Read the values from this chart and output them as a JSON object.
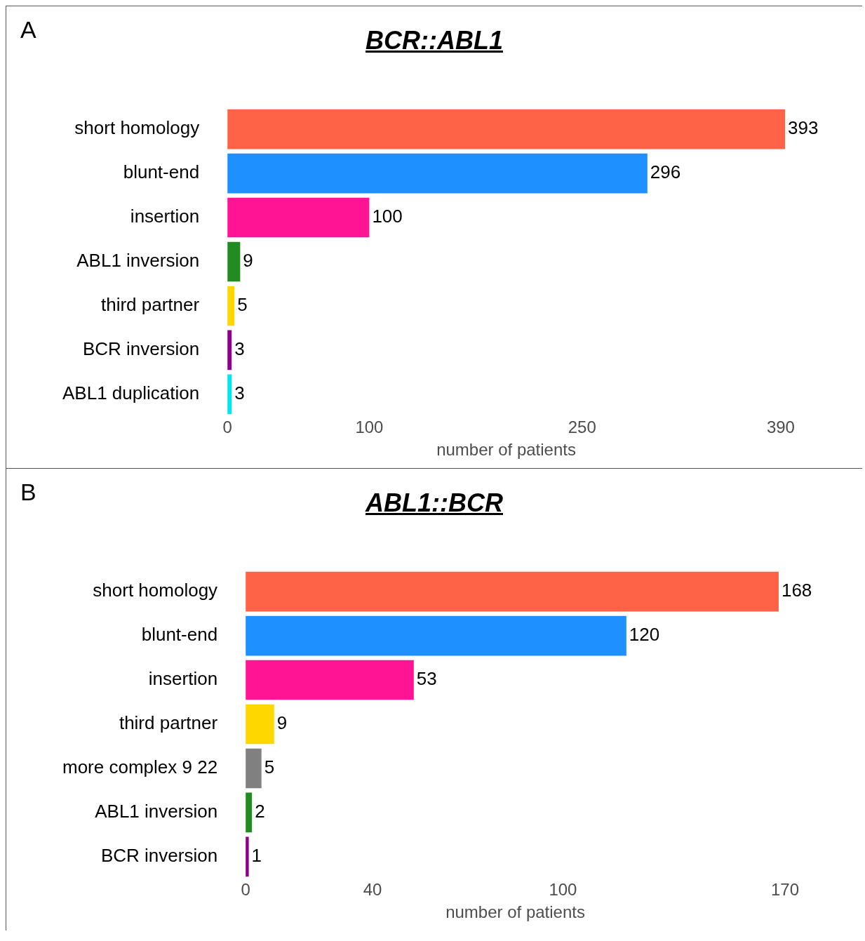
{
  "chart_data": [
    {
      "type": "bar",
      "orientation": "horizontal",
      "title": "BCR::ABL1",
      "xlabel": "number of patients",
      "annotations": [
        "A"
      ],
      "categories": [
        "short homology",
        "blunt-end",
        "insertion",
        "ABL1 inversion",
        "third partner",
        "BCR inversion",
        "ABL1 duplication"
      ],
      "values": [
        393,
        296,
        100,
        9,
        5,
        3,
        3
      ],
      "colors": [
        "#ff6347",
        "#1e90ff",
        "#ff1493",
        "#228b22",
        "#ffd700",
        "#8b008b",
        "#00e5ee"
      ],
      "xlim": [
        0,
        393
      ],
      "xticks": [
        0,
        100,
        250,
        390
      ],
      "grid": false,
      "legend": false,
      "data_labels": true
    },
    {
      "type": "bar",
      "orientation": "horizontal",
      "title": "ABL1::BCR",
      "xlabel": "number of patients",
      "annotations": [
        "B"
      ],
      "categories": [
        "short homology",
        "blunt-end",
        "insertion",
        "third partner",
        "more complex 9 22",
        "ABL1 inversion",
        "BCR inversion"
      ],
      "values": [
        168,
        120,
        53,
        9,
        5,
        2,
        1
      ],
      "colors": [
        "#ff6347",
        "#1e90ff",
        "#ff1493",
        "#ffd700",
        "#808080",
        "#228b22",
        "#8b008b"
      ],
      "xlim": [
        0,
        170
      ],
      "xticks": [
        0,
        40,
        100,
        170
      ],
      "grid": false,
      "legend": false,
      "data_labels": true
    }
  ]
}
